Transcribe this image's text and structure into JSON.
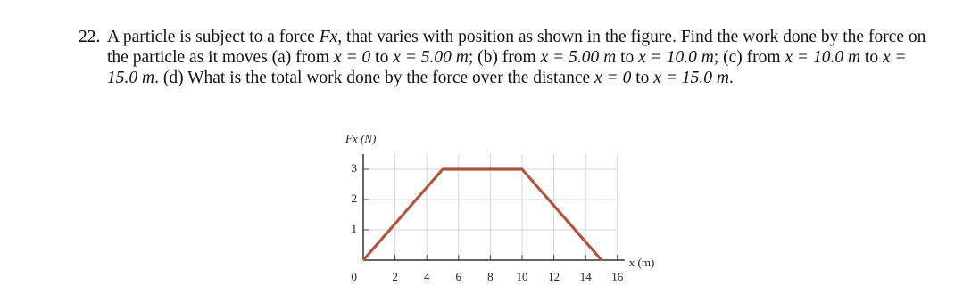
{
  "problem": {
    "number": "22.",
    "runs": [
      {
        "text": "A particle is subject to a force "
      },
      {
        "text": "Fx",
        "style": "italic"
      },
      {
        "text": ", that varies with position as shown in the figure. Find the work done by the force on the particle as it moves (a) from "
      },
      {
        "text": "x = 0",
        "style": "italic"
      },
      {
        "text": " to "
      },
      {
        "text": "x = 5.00 m",
        "style": "italic"
      },
      {
        "text": "; (b) from "
      },
      {
        "text": "x = 5.00 m",
        "style": "italic"
      },
      {
        "text": " to "
      },
      {
        "text": "x = 10.0 m",
        "style": "italic"
      },
      {
        "text": "; (c) from "
      },
      {
        "text": "x = 10.0 m",
        "style": "italic"
      },
      {
        "text": " to "
      },
      {
        "text": "x = 15.0 m",
        "style": "italic"
      },
      {
        "text": ". (d) What is the total work done by the force over the distance "
      },
      {
        "text": "x = 0",
        "style": "italic"
      },
      {
        "text": " to "
      },
      {
        "text": "x = 15.0 m",
        "style": "italic"
      },
      {
        "text": "."
      }
    ]
  },
  "chart_data": {
    "type": "line",
    "ylabel": "Fx (N)",
    "xlabel": "x (m)",
    "x": [
      0,
      5,
      10,
      15
    ],
    "values": [
      0,
      3,
      3,
      0
    ],
    "color": "#b4533c",
    "xlim": [
      0,
      16
    ],
    "ylim": [
      0,
      3.5
    ],
    "xticks": [
      2,
      4,
      6,
      8,
      10,
      12,
      14,
      16
    ],
    "yticks": [
      0,
      1,
      2,
      3
    ],
    "grid": true
  }
}
